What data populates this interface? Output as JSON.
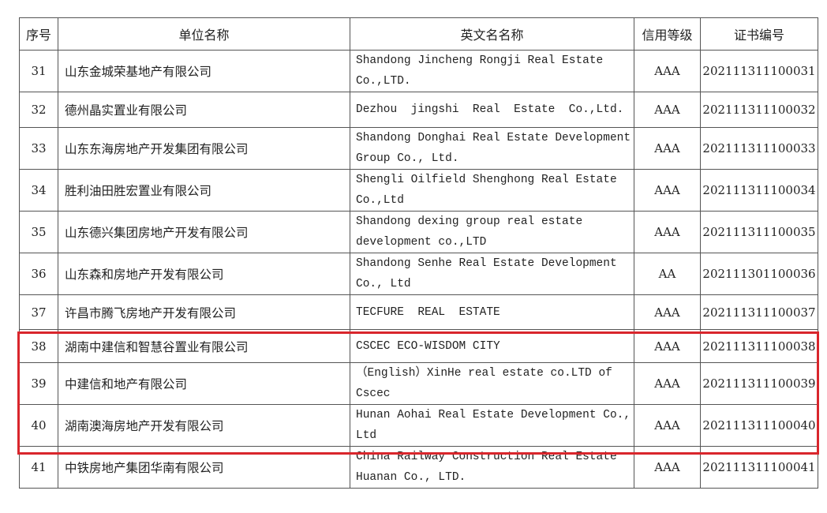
{
  "headers": [
    "序号",
    "单位名称",
    "英文名名称",
    "信用等级",
    "证书编号"
  ],
  "rows": [
    {
      "no": "31",
      "name": "山东金城荣基地产有限公司",
      "en": "Shandong Jincheng Rongji Real Estate Co.,LTD.",
      "grade": "AAA",
      "cert": "202111311100031"
    },
    {
      "no": "32",
      "name": "德州晶实置业有限公司",
      "en": "Dezhou  jingshi  Real  Estate  Co.,Ltd.",
      "grade": "AAA",
      "cert": "202111311100032"
    },
    {
      "no": "33",
      "name": "山东东海房地产开发集团有限公司",
      "en": "Shandong Donghai Real Estate Development Group Co., Ltd.",
      "grade": "AAA",
      "cert": "202111311100033"
    },
    {
      "no": "34",
      "name": "胜利油田胜宏置业有限公司",
      "en": "Shengli Oilfield Shenghong Real Estate Co.,Ltd",
      "grade": "AAA",
      "cert": "202111311100034"
    },
    {
      "no": "35",
      "name": "山东德兴集团房地产开发有限公司",
      "en": "Shandong dexing group real estate development co.,LTD",
      "grade": "AAA",
      "cert": "202111311100035"
    },
    {
      "no": "36",
      "name": "山东森和房地产开发有限公司",
      "en": "Shandong Senhe Real Estate Development Co., Ltd",
      "grade": "AA",
      "cert": "202111301100036"
    },
    {
      "no": "37",
      "name": "许昌市腾飞房地产开发有限公司",
      "en": "TECFURE  REAL  ESTATE",
      "grade": "AAA",
      "cert": "202111311100037"
    },
    {
      "no": "38",
      "name": "湖南中建信和智慧谷置业有限公司",
      "en": "CSCEC ECO-WISDOM CITY",
      "grade": "AAA",
      "cert": "202111311100038"
    },
    {
      "no": "39",
      "name": "中建信和地产有限公司",
      "en": "（English）XinHe real estate co.LTD of Cscec",
      "grade": "AAA",
      "cert": "202111311100039"
    },
    {
      "no": "40",
      "name": "湖南澳海房地产开发有限公司",
      "en": "Hunan Aohai Real Estate Development Co., Ltd",
      "grade": "AAA",
      "cert": "202111311100040"
    },
    {
      "no": "41",
      "name": "中铁房地产集团华南有限公司",
      "en": "China Railway Construction Real Estate Huanan Co., LTD.",
      "grade": "AAA",
      "cert": "202111311100041"
    }
  ],
  "highlight_color": "#d9262c"
}
